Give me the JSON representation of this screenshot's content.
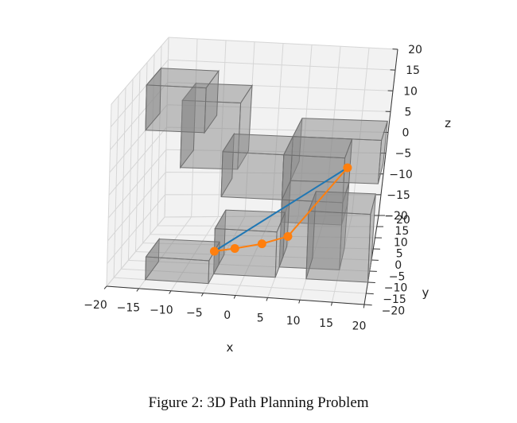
{
  "figure": {
    "caption": "Figure 2: 3D Path Planning Problem"
  },
  "chart_data": {
    "type": "line3d",
    "xlabel": "x",
    "ylabel": "y",
    "zlabel": "z",
    "xlim": [
      -20,
      20
    ],
    "ylim": [
      -20,
      20
    ],
    "zlim": [
      -20,
      20
    ],
    "grid": true,
    "x_ticks": [
      -20,
      -15,
      -10,
      -5,
      0,
      5,
      10,
      15,
      20
    ],
    "y_ticks": [
      -20,
      -15,
      -10,
      -5,
      0,
      5,
      10,
      15,
      20
    ],
    "z_ticks": [
      -20,
      -15,
      -10,
      -5,
      0,
      5,
      10,
      15,
      20
    ],
    "x_tick_labels": [
      "−20",
      "−15",
      "−10",
      "−5",
      "0",
      "5",
      "10",
      "15",
      "20"
    ],
    "y_tick_labels": [
      "−20",
      "−15",
      "−10",
      "−5",
      "0",
      "5",
      "10",
      "15",
      "20"
    ],
    "z_tick_labels": [
      "−20",
      "−15",
      "−10",
      "−5",
      "0",
      "5",
      "10",
      "15",
      "20"
    ],
    "colors": {
      "direct_path": "#1f77b4",
      "planned_path": "#ff7f0e",
      "obstacle_face": "#8a8a8a",
      "obstacle_edge": "#6f6f6f",
      "pane": "#f2f2f2",
      "grid": "#d6d6d6"
    },
    "series": [
      {
        "kind": "direct",
        "points": [
          [
            -5,
            -10,
            -15
          ],
          [
            16,
            -10,
            5
          ]
        ]
      },
      {
        "kind": "planned",
        "points": [
          [
            -5,
            -10,
            -15
          ],
          [
            -2,
            -8,
            -15
          ],
          [
            2,
            -5,
            -15
          ],
          [
            6,
            -3,
            -14
          ],
          [
            16,
            -10,
            5
          ]
        ]
      }
    ],
    "obstacles": [
      {
        "min": [
          -20,
          5,
          5
        ],
        "max": [
          -10,
          15,
          15
        ]
      },
      {
        "min": [
          -15,
          10,
          -5
        ],
        "max": [
          -5,
          20,
          10
        ]
      },
      {
        "min": [
          -5,
          -5,
          -5
        ],
        "max": [
          5,
          5,
          5
        ]
      },
      {
        "min": [
          5,
          5,
          -5
        ],
        "max": [
          20,
          15,
          5
        ]
      },
      {
        "min": [
          5,
          -5,
          -10
        ],
        "max": [
          15,
          5,
          5
        ]
      },
      {
        "min": [
          5,
          -5,
          -20
        ],
        "max": [
          15,
          5,
          -5
        ]
      },
      {
        "min": [
          10,
          -10,
          -20
        ],
        "max": [
          20,
          0,
          -5
        ]
      },
      {
        "min": [
          -15,
          -15,
          -20
        ],
        "max": [
          -5,
          -5,
          -15
        ]
      },
      {
        "min": [
          -5,
          -10,
          -20
        ],
        "max": [
          5,
          0,
          -10
        ]
      }
    ]
  }
}
